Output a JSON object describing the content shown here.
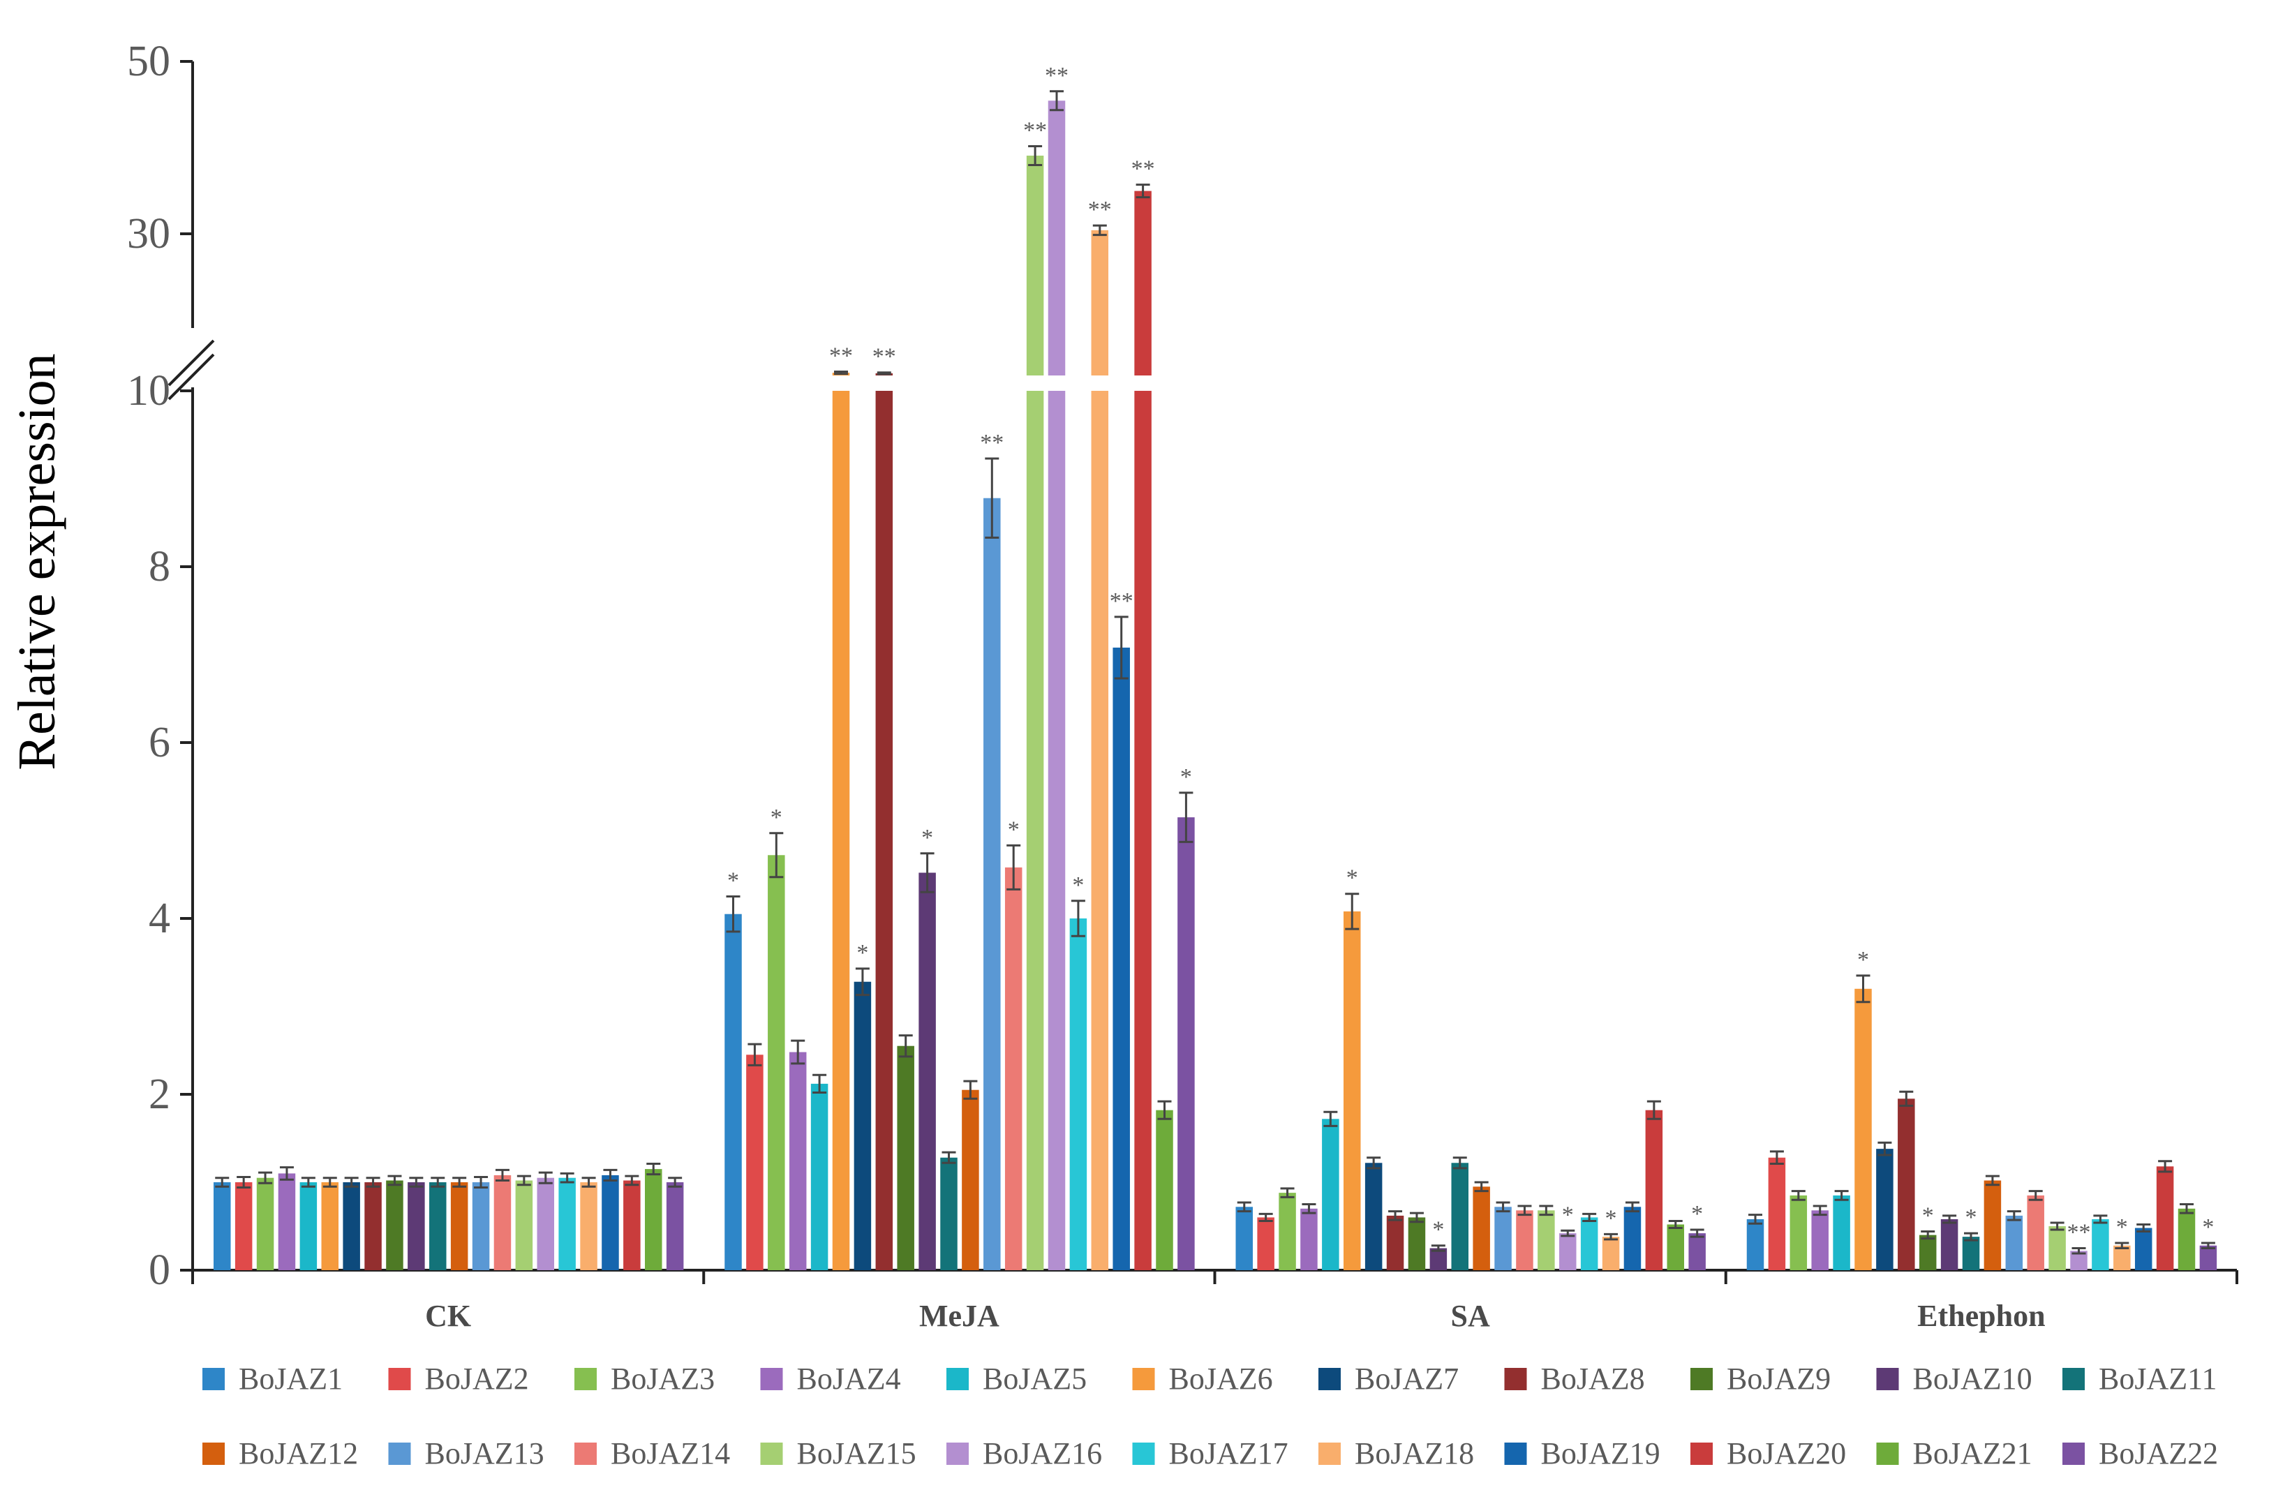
{
  "chart_data": {
    "type": "bar",
    "ylabel": "Relative expression",
    "xlabel": "",
    "ylim": [
      0,
      50
    ],
    "y_axis_break": {
      "from": 10,
      "to": 30
    },
    "yticks": [
      "0",
      "2",
      "4",
      "6",
      "8",
      "10",
      "30",
      "50"
    ],
    "categories": [
      "CK",
      "MeJA",
      "SA",
      "Ethephon"
    ],
    "legend_position": "bottom",
    "series": [
      {
        "name": "BoJAZ1",
        "color": "#2e86c8",
        "values": [
          1.0,
          4.05,
          0.72,
          0.58
        ],
        "sig": [
          "",
          "*",
          "",
          ""
        ]
      },
      {
        "name": "BoJAZ2",
        "color": "#e04a4a",
        "values": [
          1.0,
          2.45,
          0.6,
          1.28
        ],
        "sig": [
          "",
          "",
          "",
          ""
        ]
      },
      {
        "name": "BoJAZ3",
        "color": "#86bf50",
        "values": [
          1.05,
          4.72,
          0.88,
          0.85
        ],
        "sig": [
          "",
          "*",
          "",
          ""
        ]
      },
      {
        "name": "BoJAZ4",
        "color": "#9b6bbd",
        "values": [
          1.1,
          2.48,
          0.7,
          0.68
        ],
        "sig": [
          "",
          "",
          "",
          ""
        ]
      },
      {
        "name": "BoJAZ5",
        "color": "#1bb7c9",
        "values": [
          1.0,
          2.12,
          1.72,
          0.85
        ],
        "sig": [
          "",
          "",
          "",
          ""
        ]
      },
      {
        "name": "BoJAZ6",
        "color": "#f59a3c",
        "values": [
          1.0,
          10.35,
          4.08,
          3.2
        ],
        "sig": [
          "",
          "**",
          "*",
          "*"
        ]
      },
      {
        "name": "BoJAZ7",
        "color": "#0d4a7c",
        "values": [
          1.0,
          3.28,
          1.22,
          1.38
        ],
        "sig": [
          "",
          "*",
          "",
          ""
        ]
      },
      {
        "name": "BoJAZ8",
        "color": "#932f2f",
        "values": [
          1.0,
          10.28,
          0.62,
          1.95
        ],
        "sig": [
          "",
          "**",
          "",
          ""
        ]
      },
      {
        "name": "BoJAZ9",
        "color": "#4e7a25",
        "values": [
          1.02,
          2.55,
          0.6,
          0.4
        ],
        "sig": [
          "",
          "",
          "",
          "*"
        ]
      },
      {
        "name": "BoJAZ10",
        "color": "#5d3a75",
        "values": [
          1.0,
          4.52,
          0.25,
          0.58
        ],
        "sig": [
          "",
          "*",
          "*",
          ""
        ]
      },
      {
        "name": "BoJAZ11",
        "color": "#137379",
        "values": [
          1.0,
          1.28,
          1.22,
          0.38
        ],
        "sig": [
          "",
          "",
          "",
          "*"
        ]
      },
      {
        "name": "BoJAZ12",
        "color": "#d45f0e",
        "values": [
          1.0,
          2.05,
          0.95,
          1.02
        ],
        "sig": [
          "",
          "",
          "",
          ""
        ]
      },
      {
        "name": "BoJAZ13",
        "color": "#5a98d4",
        "values": [
          1.0,
          8.78,
          0.72,
          0.62
        ],
        "sig": [
          "",
          "**",
          "",
          ""
        ]
      },
      {
        "name": "BoJAZ14",
        "color": "#ec7a74",
        "values": [
          1.08,
          4.58,
          0.68,
          0.85
        ],
        "sig": [
          "",
          "*",
          "",
          ""
        ]
      },
      {
        "name": "BoJAZ15",
        "color": "#a5cf72",
        "values": [
          1.02,
          38.0,
          0.68,
          0.5
        ],
        "sig": [
          "",
          "**",
          "",
          ""
        ]
      },
      {
        "name": "BoJAZ16",
        "color": "#b38fd0",
        "values": [
          1.05,
          45.0,
          0.42,
          0.22
        ],
        "sig": [
          "",
          "**",
          "*",
          "**"
        ]
      },
      {
        "name": "BoJAZ17",
        "color": "#28c6d6",
        "values": [
          1.05,
          4.0,
          0.6,
          0.58
        ],
        "sig": [
          "",
          "*",
          "",
          ""
        ]
      },
      {
        "name": "BoJAZ18",
        "color": "#f9ae6c",
        "values": [
          1.0,
          28.5,
          0.38,
          0.28
        ],
        "sig": [
          "",
          "**",
          "*",
          "*"
        ]
      },
      {
        "name": "BoJAZ19",
        "color": "#1566ae",
        "values": [
          1.08,
          7.08,
          0.72,
          0.48
        ],
        "sig": [
          "",
          "**",
          "",
          ""
        ]
      },
      {
        "name": "BoJAZ20",
        "color": "#c93c3c",
        "values": [
          1.02,
          33.5,
          1.82,
          1.18
        ],
        "sig": [
          "",
          "**",
          "",
          ""
        ]
      },
      {
        "name": "BoJAZ21",
        "color": "#6eab3a",
        "values": [
          1.15,
          1.82,
          0.52,
          0.7
        ],
        "sig": [
          "",
          "",
          "",
          ""
        ]
      },
      {
        "name": "BoJAZ22",
        "color": "#7b52a2",
        "values": [
          1.0,
          5.15,
          0.42,
          0.28
        ],
        "sig": [
          "",
          "*",
          "*",
          "*"
        ]
      }
    ],
    "errors": [
      [
        0.05,
        0.2,
        0.05,
        0.05
      ],
      [
        0.06,
        0.12,
        0.04,
        0.07
      ],
      [
        0.06,
        0.25,
        0.05,
        0.05
      ],
      [
        0.07,
        0.13,
        0.05,
        0.05
      ],
      [
        0.05,
        0.1,
        0.08,
        0.05
      ],
      [
        0.05,
        0.14,
        0.2,
        0.15
      ],
      [
        0.05,
        0.15,
        0.06,
        0.07
      ],
      [
        0.05,
        0.1,
        0.05,
        0.08
      ],
      [
        0.05,
        0.12,
        0.05,
        0.04
      ],
      [
        0.05,
        0.22,
        0.03,
        0.04
      ],
      [
        0.05,
        0.06,
        0.06,
        0.04
      ],
      [
        0.05,
        0.1,
        0.05,
        0.05
      ],
      [
        0.06,
        0.45,
        0.05,
        0.05
      ],
      [
        0.06,
        0.25,
        0.05,
        0.05
      ],
      [
        0.05,
        1.2,
        0.05,
        0.04
      ],
      [
        0.06,
        1.2,
        0.03,
        0.03
      ],
      [
        0.05,
        0.2,
        0.04,
        0.04
      ],
      [
        0.05,
        0.6,
        0.03,
        0.03
      ],
      [
        0.06,
        0.35,
        0.05,
        0.04
      ],
      [
        0.05,
        0.8,
        0.1,
        0.06
      ],
      [
        0.06,
        0.1,
        0.04,
        0.05
      ],
      [
        0.05,
        0.28,
        0.04,
        0.03
      ]
    ]
  }
}
